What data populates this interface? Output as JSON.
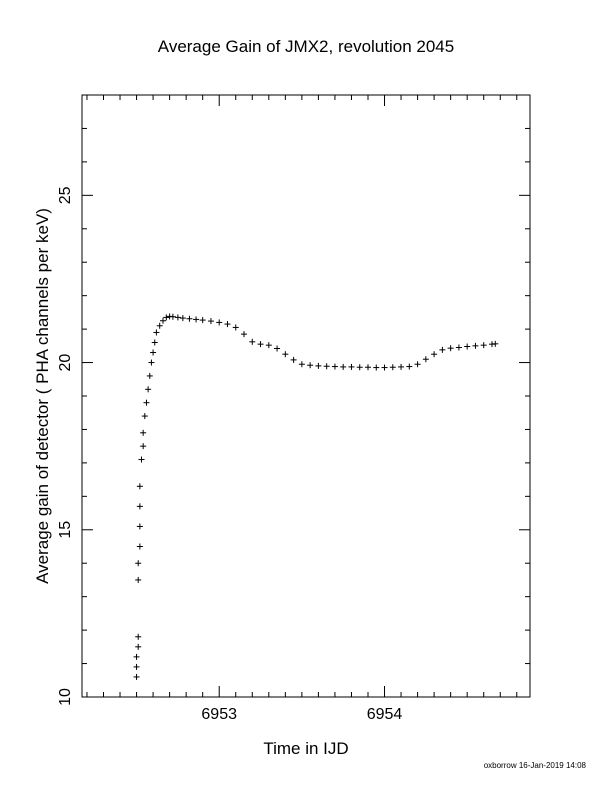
{
  "chart_data": {
    "type": "scatter",
    "title": "Average Gain of JMX2, revolution 2045",
    "xlabel": "Time in IJD",
    "ylabel": "Average gain of detector ( PHA channels per keV)",
    "xlim": [
      6952.17,
      6954.88
    ],
    "ylim": [
      10,
      28
    ],
    "xticks": [
      6953,
      6954
    ],
    "xtick_labels": [
      "6953",
      "6954"
    ],
    "yticks": [
      10,
      15,
      20,
      25
    ],
    "ytick_labels": [
      "10",
      "15",
      "20",
      "25"
    ],
    "grid": false,
    "marker": "+",
    "series": [
      {
        "x": [
          6952.5,
          6952.5,
          6952.5,
          6952.51,
          6952.51,
          6952.51,
          6952.51,
          6952.52,
          6952.52,
          6952.52,
          6952.52,
          6952.53,
          6952.54,
          6952.54,
          6952.55,
          6952.56,
          6952.57,
          6952.58,
          6952.59,
          6952.6,
          6952.61,
          6952.62,
          6952.64,
          6952.66,
          6952.68,
          6952.7,
          6952.72,
          6952.75,
          6952.78,
          6952.82,
          6952.86,
          6952.9,
          6952.95,
          6953.0,
          6953.05,
          6953.1,
          6953.15,
          6953.2,
          6953.25,
          6953.3,
          6953.35,
          6953.4,
          6953.45,
          6953.5,
          6953.55,
          6953.6,
          6953.65,
          6953.7,
          6953.75,
          6953.8,
          6953.85,
          6953.9,
          6953.95,
          6954.0,
          6954.05,
          6954.1,
          6954.15,
          6954.2,
          6954.25,
          6954.3,
          6954.35,
          6954.4,
          6954.45,
          6954.5,
          6954.55,
          6954.6,
          6954.65,
          6954.67
        ],
        "y": [
          10.6,
          10.9,
          11.2,
          11.5,
          11.8,
          13.5,
          14.0,
          14.5,
          15.1,
          15.7,
          16.3,
          17.1,
          17.5,
          17.9,
          18.4,
          18.8,
          19.2,
          19.6,
          20.0,
          20.3,
          20.6,
          20.9,
          21.1,
          21.25,
          21.35,
          21.38,
          21.37,
          21.35,
          21.33,
          21.31,
          21.29,
          21.27,
          21.24,
          21.2,
          21.15,
          21.05,
          20.85,
          20.62,
          20.55,
          20.52,
          20.42,
          20.25,
          20.08,
          19.95,
          19.92,
          19.9,
          19.89,
          19.88,
          19.87,
          19.87,
          19.86,
          19.86,
          19.85,
          19.85,
          19.86,
          19.87,
          19.88,
          19.95,
          20.1,
          20.25,
          20.38,
          20.43,
          20.45,
          20.48,
          20.5,
          20.52,
          20.55,
          20.56
        ]
      }
    ]
  },
  "footer": "oxborrow 16-Jan-2019 14:08"
}
